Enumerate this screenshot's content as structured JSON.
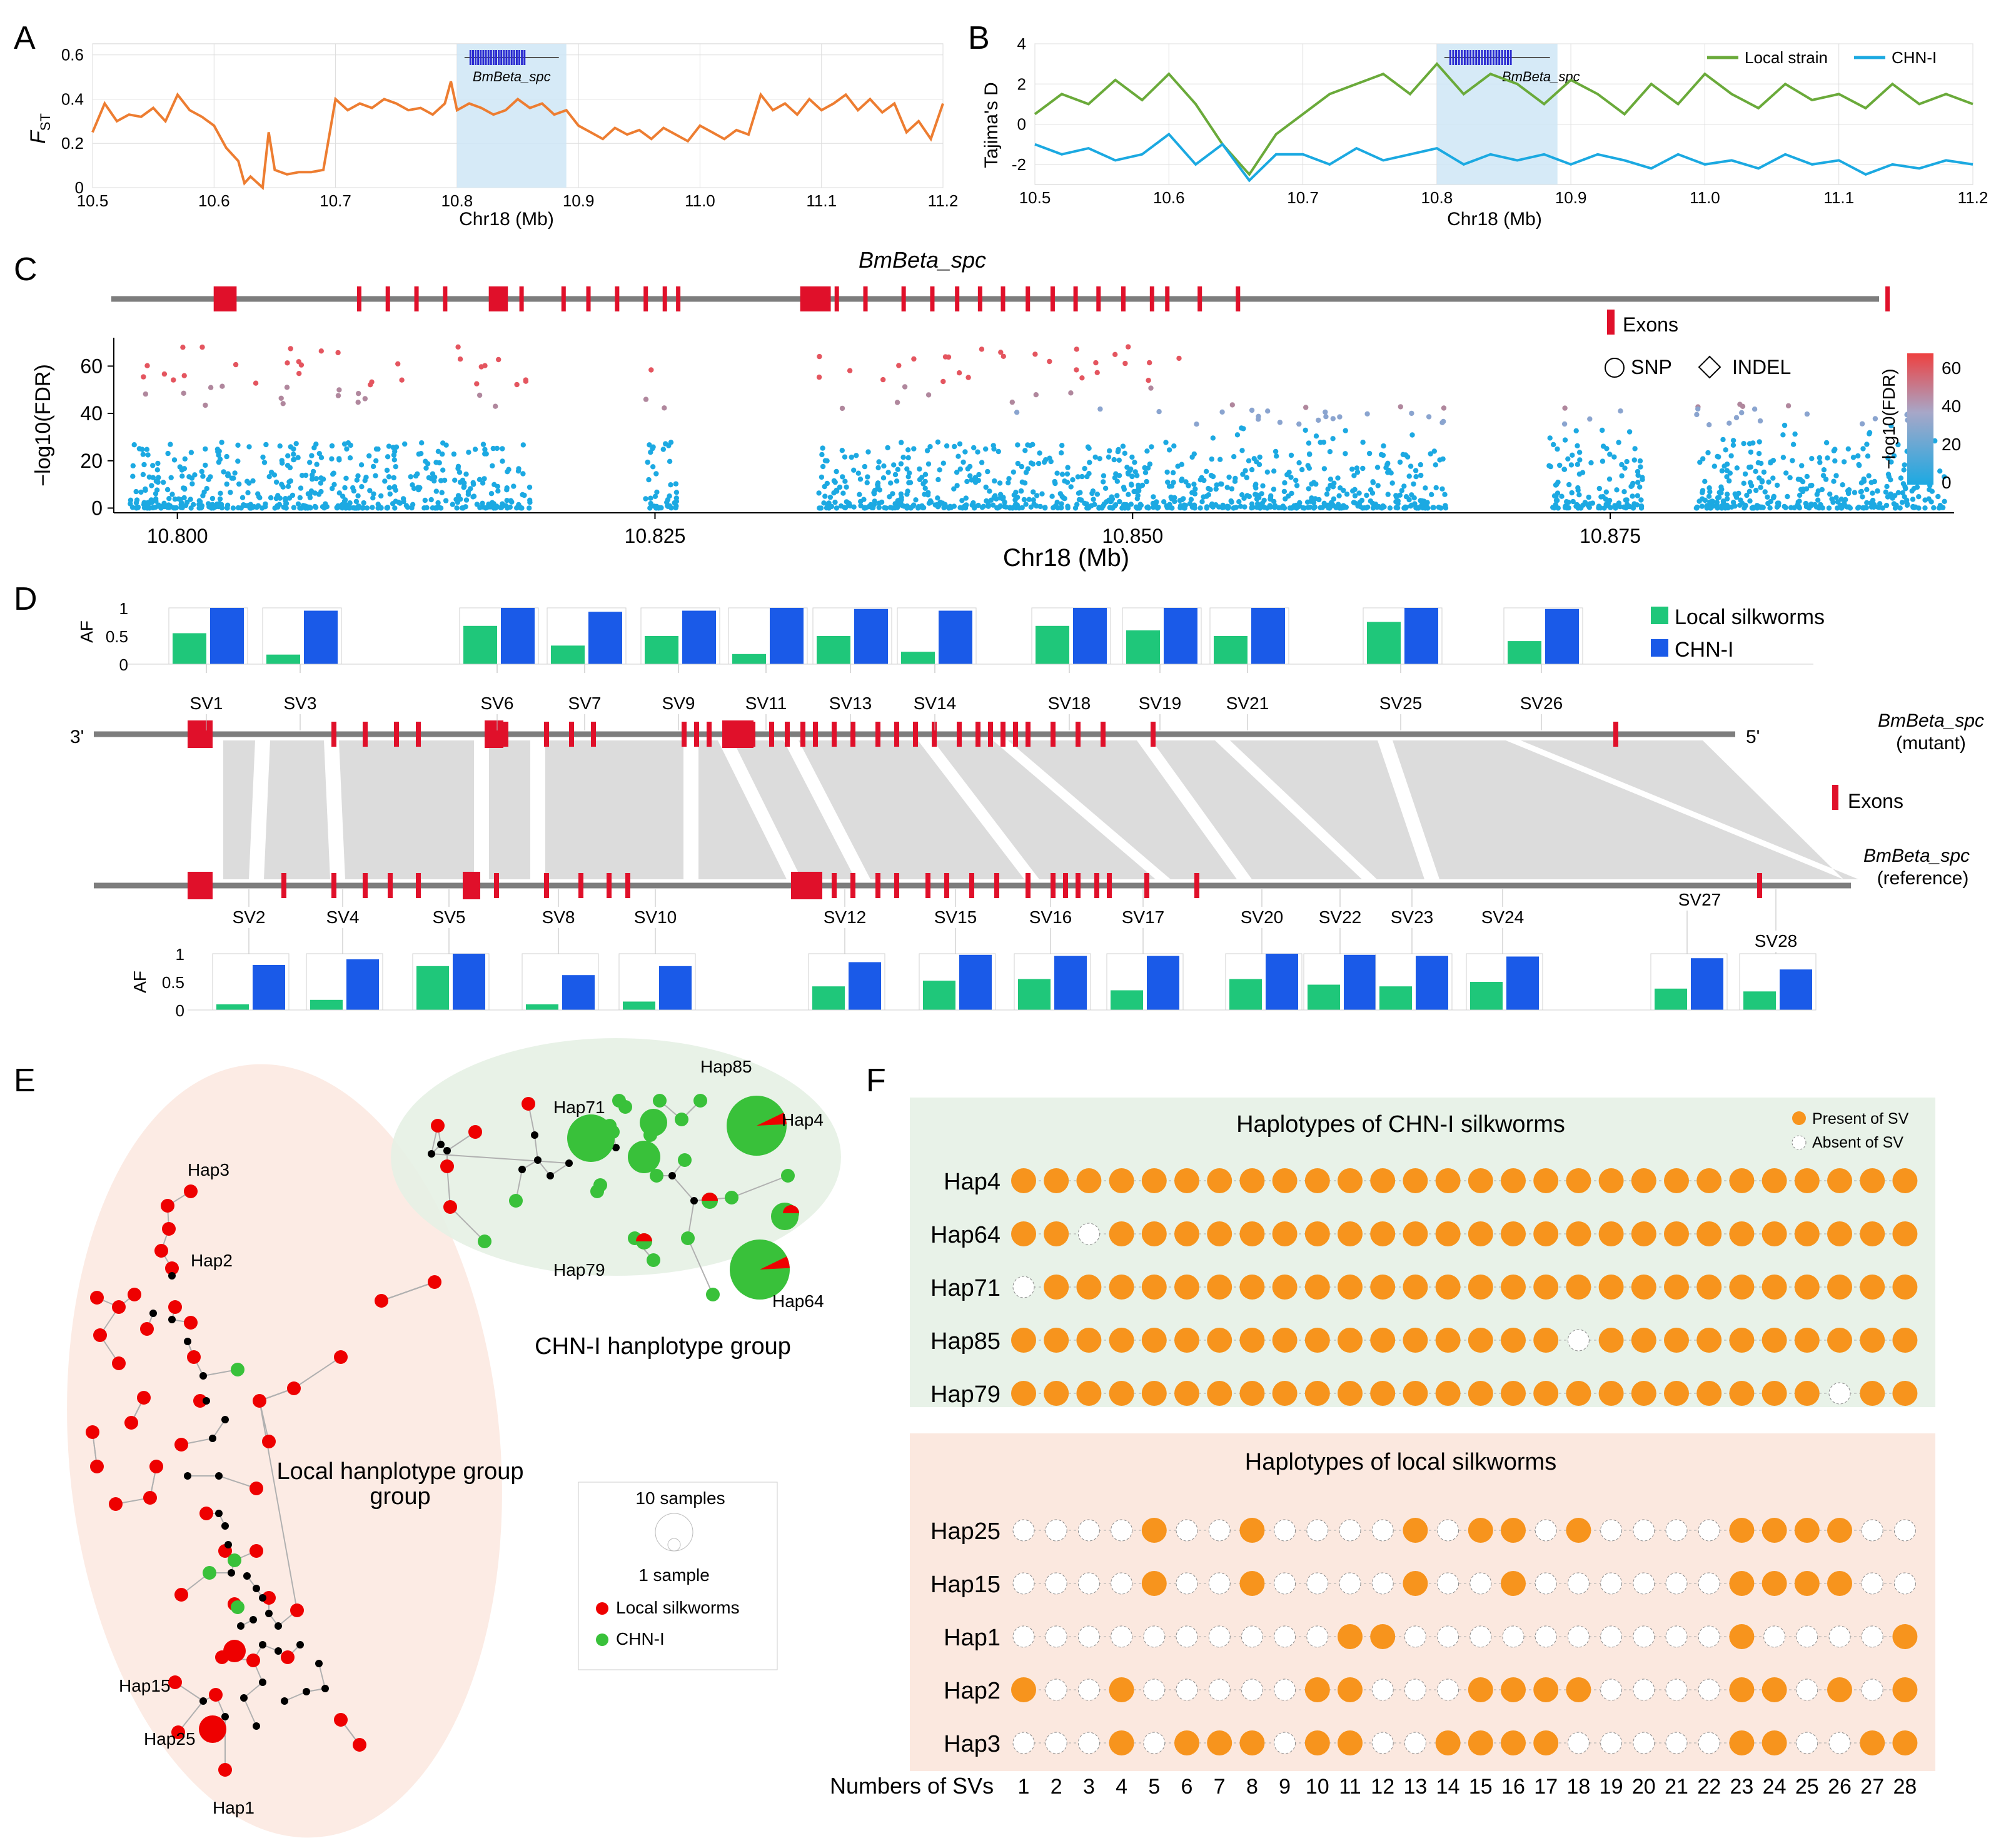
{
  "chart_data": [
    {
      "panel": "A",
      "type": "line",
      "xlabel": "Chr18 (Mb)",
      "ylabel": "FST",
      "xlim": [
        10.5,
        11.2
      ],
      "ylim": [
        0,
        0.65
      ],
      "xticks": [
        "10.5",
        "10.6",
        "10.7",
        "10.8",
        "10.9",
        "11.0",
        "11.1",
        "11.2"
      ],
      "yticks": [
        "0",
        "0.2",
        "0.4",
        "0.6"
      ],
      "highlight": [
        10.8,
        10.89
      ],
      "gene_label": "BmBeta_spc",
      "series": [
        {
          "name": "FST",
          "color": "#ed7d31",
          "x": [
            10.5,
            10.51,
            10.52,
            10.53,
            10.54,
            10.55,
            10.56,
            10.57,
            10.58,
            10.59,
            10.6,
            10.61,
            10.62,
            10.625,
            10.63,
            10.64,
            10.645,
            10.65,
            10.66,
            10.67,
            10.68,
            10.69,
            10.7,
            10.71,
            10.72,
            10.73,
            10.74,
            10.75,
            10.76,
            10.77,
            10.78,
            10.79,
            10.795,
            10.8,
            10.81,
            10.82,
            10.83,
            10.84,
            10.85,
            10.86,
            10.87,
            10.88,
            10.89,
            10.9,
            10.91,
            10.92,
            10.93,
            10.94,
            10.95,
            10.96,
            10.97,
            10.98,
            10.99,
            11.0,
            11.01,
            11.02,
            11.03,
            11.04,
            11.05,
            11.06,
            11.07,
            11.08,
            11.09,
            11.1,
            11.11,
            11.12,
            11.13,
            11.14,
            11.15,
            11.16,
            11.17,
            11.18,
            11.19,
            11.2
          ],
          "y": [
            0.25,
            0.38,
            0.3,
            0.33,
            0.32,
            0.36,
            0.3,
            0.42,
            0.35,
            0.32,
            0.28,
            0.18,
            0.12,
            0.02,
            0.05,
            0.0,
            0.25,
            0.08,
            0.06,
            0.07,
            0.07,
            0.08,
            0.4,
            0.35,
            0.38,
            0.36,
            0.4,
            0.38,
            0.35,
            0.36,
            0.33,
            0.38,
            0.48,
            0.35,
            0.38,
            0.36,
            0.33,
            0.35,
            0.4,
            0.36,
            0.38,
            0.33,
            0.35,
            0.28,
            0.25,
            0.22,
            0.27,
            0.24,
            0.26,
            0.22,
            0.27,
            0.24,
            0.21,
            0.28,
            0.25,
            0.22,
            0.26,
            0.24,
            0.42,
            0.35,
            0.38,
            0.33,
            0.4,
            0.35,
            0.38,
            0.42,
            0.35,
            0.4,
            0.34,
            0.38,
            0.25,
            0.3,
            0.22,
            0.38
          ]
        }
      ]
    },
    {
      "panel": "B",
      "type": "line",
      "xlabel": "Chr18 (Mb)",
      "ylabel": "Tajima's D",
      "xlim": [
        10.5,
        11.2
      ],
      "ylim": [
        -3,
        4
      ],
      "xticks": [
        "10.5",
        "10.6",
        "10.7",
        "10.8",
        "10.9",
        "11.0",
        "11.1",
        "11.2"
      ],
      "yticks": [
        "4",
        "2",
        "0",
        "-2"
      ],
      "highlight": [
        10.8,
        10.89
      ],
      "gene_label": "BmBeta_spc",
      "series": [
        {
          "name": "Local strain",
          "color": "#6aaa3a",
          "x": [
            10.5,
            10.52,
            10.54,
            10.56,
            10.58,
            10.6,
            10.62,
            10.64,
            10.66,
            10.68,
            10.7,
            10.72,
            10.74,
            10.76,
            10.78,
            10.8,
            10.82,
            10.84,
            10.86,
            10.88,
            10.9,
            10.92,
            10.94,
            10.96,
            10.98,
            11.0,
            11.02,
            11.04,
            11.06,
            11.08,
            11.1,
            11.12,
            11.14,
            11.16,
            11.18,
            11.2
          ],
          "y": [
            0.5,
            1.5,
            1.0,
            2.2,
            1.2,
            2.5,
            1.0,
            -1.0,
            -2.5,
            -0.5,
            0.5,
            1.5,
            2.0,
            2.5,
            1.5,
            3.0,
            1.5,
            2.5,
            2.0,
            1.0,
            2.2,
            1.5,
            0.5,
            2.0,
            1.0,
            2.5,
            1.5,
            0.8,
            2.0,
            1.2,
            1.5,
            0.8,
            2.0,
            1.0,
            1.5,
            1.0
          ]
        },
        {
          "name": "CHN-I",
          "color": "#1ba9e1",
          "x": [
            10.5,
            10.52,
            10.54,
            10.56,
            10.58,
            10.6,
            10.62,
            10.64,
            10.66,
            10.68,
            10.7,
            10.72,
            10.74,
            10.76,
            10.78,
            10.8,
            10.82,
            10.84,
            10.86,
            10.88,
            10.9,
            10.92,
            10.94,
            10.96,
            10.98,
            11.0,
            11.02,
            11.04,
            11.06,
            11.08,
            11.1,
            11.12,
            11.14,
            11.16,
            11.18,
            11.2
          ],
          "y": [
            -1.0,
            -1.5,
            -1.2,
            -1.8,
            -1.5,
            -0.5,
            -2.0,
            -1.0,
            -2.8,
            -1.5,
            -1.5,
            -2.0,
            -1.2,
            -1.8,
            -1.5,
            -1.2,
            -2.0,
            -1.5,
            -1.8,
            -1.5,
            -2.0,
            -1.5,
            -1.8,
            -2.2,
            -1.5,
            -2.0,
            -1.8,
            -2.2,
            -1.5,
            -2.0,
            -1.8,
            -2.5,
            -2.0,
            -2.2,
            -1.8,
            -2.0
          ]
        }
      ]
    },
    {
      "panel": "C",
      "type": "scatter",
      "title": "BmBeta_spc",
      "xlabel": "Chr18 (Mb)",
      "ylabel": "−log10(FDR)",
      "xlim": [
        10.797,
        10.893
      ],
      "ylim": [
        -2,
        72
      ],
      "xticks": [
        "10.800",
        "10.825",
        "10.850",
        "10.875"
      ],
      "yticks": [
        "0",
        "20",
        "40",
        "60"
      ],
      "legend": {
        "exons": "Exons",
        "snp": "SNP",
        "indel": "INDEL",
        "colorbar_title": "−log10(FDR)",
        "colorbar_ticks": [
          "60",
          "40",
          "20",
          "0"
        ]
      },
      "exons": [
        10.8022,
        10.8095,
        10.811,
        10.8125,
        10.814,
        10.817,
        10.818,
        10.8202,
        10.8215,
        10.823,
        10.8245,
        10.8255,
        10.8262,
        10.8345,
        10.836,
        10.838,
        10.8395,
        10.8408,
        10.842,
        10.8432,
        10.8445,
        10.8458,
        10.847,
        10.8482,
        10.8495,
        10.851,
        10.8518,
        10.8535,
        10.8555,
        10.8895
      ],
      "exon_blocks": [
        [
          10.8019,
          10.8031
        ],
        [
          10.8163,
          10.8173
        ],
        [
          10.8326,
          10.8342
        ]
      ],
      "points_desc": "dense SNP/INDEL cloud; high-FDR clusters near 10.800-10.818, 10.825, 10.834-10.853"
    },
    {
      "panel": "D",
      "type": "bar",
      "ylabel": "AF",
      "yticks": [
        "1",
        "0.5",
        "0"
      ],
      "legend": [
        "Local silkworms",
        "CHN-I"
      ],
      "colors": {
        "local": "#1fc77a",
        "chn": "#1a5ae8"
      },
      "track_labels": {
        "three_prime": "3'",
        "five_prime": "5'",
        "mutant_gene": "BmBeta_spc",
        "mutant_sub": "(mutant)",
        "ref_gene": "BmBeta_spc",
        "ref_sub": "(reference)",
        "exons": "Exons"
      },
      "top_svs": [
        {
          "name": "SV1",
          "local": 0.55,
          "chn": 1.0
        },
        {
          "name": "SV3",
          "local": 0.17,
          "chn": 0.95
        },
        {
          "name": "SV6",
          "local": 0.68,
          "chn": 1.0
        },
        {
          "name": "SV7",
          "local": 0.33,
          "chn": 0.93
        },
        {
          "name": "SV9",
          "local": 0.5,
          "chn": 0.95
        },
        {
          "name": "SV11",
          "local": 0.18,
          "chn": 1.0
        },
        {
          "name": "SV13",
          "local": 0.5,
          "chn": 0.98
        },
        {
          "name": "SV14",
          "local": 0.22,
          "chn": 0.95
        },
        {
          "name": "SV18",
          "local": 0.68,
          "chn": 1.0
        },
        {
          "name": "SV19",
          "local": 0.6,
          "chn": 1.0
        },
        {
          "name": "SV21",
          "local": 0.5,
          "chn": 1.0
        },
        {
          "name": "SV25",
          "local": 0.75,
          "chn": 1.0
        },
        {
          "name": "SV26",
          "local": 0.41,
          "chn": 0.98
        }
      ],
      "bottom_svs": [
        {
          "name": "SV2",
          "local": 0.1,
          "chn": 0.8
        },
        {
          "name": "SV4",
          "local": 0.18,
          "chn": 0.9
        },
        {
          "name": "SV5",
          "local": 0.78,
          "chn": 1.0
        },
        {
          "name": "SV8",
          "local": 0.1,
          "chn": 0.62
        },
        {
          "name": "SV10",
          "local": 0.15,
          "chn": 0.78
        },
        {
          "name": "SV12",
          "local": 0.42,
          "chn": 0.85
        },
        {
          "name": "SV15",
          "local": 0.52,
          "chn": 0.98
        },
        {
          "name": "SV16",
          "local": 0.55,
          "chn": 0.96
        },
        {
          "name": "SV17",
          "local": 0.35,
          "chn": 0.96
        },
        {
          "name": "SV20",
          "local": 0.55,
          "chn": 1.0
        },
        {
          "name": "SV22",
          "local": 0.45,
          "chn": 0.98
        },
        {
          "name": "SV23",
          "local": 0.42,
          "chn": 0.96
        },
        {
          "name": "SV24",
          "local": 0.5,
          "chn": 0.95
        },
        {
          "name": "SV27",
          "local": 0.38,
          "chn": 0.92
        },
        {
          "name": "SV28",
          "local": 0.33,
          "chn": 0.72
        }
      ]
    },
    {
      "panel": "E",
      "type": "network",
      "groups": [
        "Local hanplotype group",
        "CHN-I hanplotype group"
      ],
      "labels": [
        "Hap3",
        "Hap2",
        "Hap15",
        "Hap25",
        "Hap1",
        "Hap71",
        "Hap85",
        "Hap4",
        "Hap79",
        "Hap64"
      ],
      "legend": {
        "size_large": "10 samples",
        "size_small": "1 sample",
        "local": "Local silkworms",
        "chn": "CHN-I"
      },
      "colors": {
        "local": "#ee0000",
        "chn": "#39c13a",
        "median": "#000000"
      }
    },
    {
      "panel": "F",
      "type": "table",
      "x_title": "Numbers of SVs",
      "sv_numbers": [
        "1",
        "2",
        "3",
        "4",
        "5",
        "6",
        "7",
        "8",
        "9",
        "10",
        "11",
        "12",
        "13",
        "14",
        "15",
        "16",
        "17",
        "18",
        "19",
        "20",
        "21",
        "22",
        "23",
        "24",
        "25",
        "26",
        "27",
        "28"
      ],
      "legend": {
        "present": "Present of SV",
        "absent": "Absent of SV"
      },
      "groups": [
        {
          "title": "Haplotypes of CHN-I silkworms",
          "rows": [
            {
              "hap": "Hap4",
              "sv": "1111111111111111111111111111"
            },
            {
              "hap": "Hap64",
              "sv": "1101111111111111111111111111"
            },
            {
              "hap": "Hap71",
              "sv": "0111111111111111111111111111"
            },
            {
              "hap": "Hap85",
              "sv": "1111111111111111101111111111"
            },
            {
              "hap": "Hap79",
              "sv": "1111111111111111111111111011"
            }
          ]
        },
        {
          "title": "Haplotypes of local silkworms",
          "rows": [
            {
              "hap": "Hap25",
              "sv": "0000100100001011010000111100"
            },
            {
              "hap": "Hap15",
              "sv": "0000100100001001000000111100"
            },
            {
              "hap": "Hap1",
              "sv": "0000000000110000000000100001"
            },
            {
              "hap": "Hap2",
              "sv": "1001000001100011110000110101"
            },
            {
              "hap": "Hap3",
              "sv": "0001011101100111100000110011"
            }
          ]
        }
      ]
    }
  ],
  "panel_labels": [
    "A",
    "B",
    "C",
    "D",
    "E",
    "F"
  ]
}
